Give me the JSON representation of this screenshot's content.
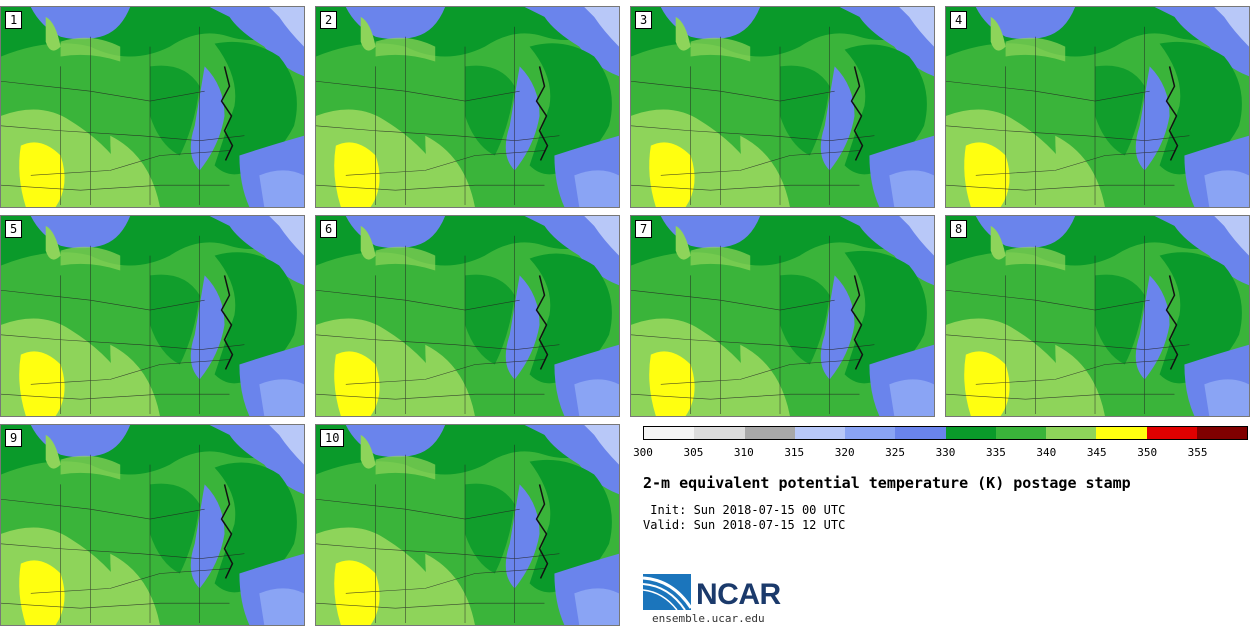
{
  "panels": [
    {
      "label": "1"
    },
    {
      "label": "2"
    },
    {
      "label": "3"
    },
    {
      "label": "4"
    },
    {
      "label": "5"
    },
    {
      "label": "6"
    },
    {
      "label": "7"
    },
    {
      "label": "8"
    },
    {
      "label": "9"
    },
    {
      "label": "10"
    }
  ],
  "colorbar": {
    "ticks": [
      "300",
      "305",
      "310",
      "315",
      "320",
      "325",
      "330",
      "335",
      "340",
      "345",
      "350",
      "355"
    ],
    "colors": [
      "#f4f4f4",
      "#dcdcdc",
      "#a8a8a8",
      "#b8c8f8",
      "#8aa4f4",
      "#6a84ec",
      "#0a9a2a",
      "#3ab43a",
      "#8ed45a",
      "#ffff10",
      "#e00000",
      "#800000"
    ]
  },
  "title": "2-m equivalent potential temperature (K) postage stamp",
  "init": " Init: Sun 2018-07-15 00 UTC",
  "valid": "Valid: Sun 2018-07-15 12 UTC",
  "logo": {
    "text": "NCAR",
    "url_text": "ensemble.ucar.edu",
    "colors": {
      "blue": "#1b75bc",
      "dark": "#1b3a6b"
    }
  }
}
